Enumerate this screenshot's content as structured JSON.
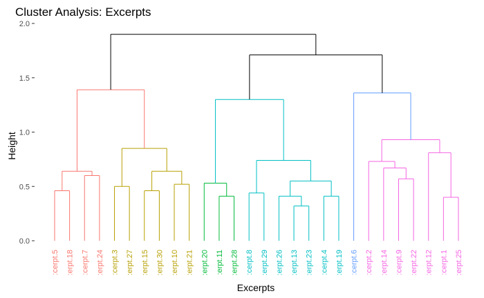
{
  "chart_data": {
    "type": "dendrogram",
    "title": "Cluster Analysis: Excerpts",
    "xlabel": "Excerpts",
    "ylabel": "Height",
    "ylim": [
      0,
      2.0
    ],
    "yticks": [
      0.0,
      0.5,
      1.0,
      1.5,
      2.0
    ],
    "ytick_labels": [
      "0.0",
      "0.5",
      "1.0",
      "1.5",
      "2.0"
    ],
    "grid": false,
    "leaves": [
      {
        "label": ":cerpt.5",
        "color": "#F8766D"
      },
      {
        "label": ":erpt.18",
        "color": "#F8766D"
      },
      {
        "label": ":cerpt.7",
        "color": "#F8766D"
      },
      {
        "label": ":erpt.24",
        "color": "#F8766D"
      },
      {
        "label": ":cerpt.3",
        "color": "#B79F00"
      },
      {
        "label": ":erpt.27",
        "color": "#B79F00"
      },
      {
        "label": ":erpt.15",
        "color": "#B79F00"
      },
      {
        "label": ":erpt.30",
        "color": "#B79F00"
      },
      {
        "label": ":erpt.10",
        "color": "#B79F00"
      },
      {
        "label": ":erpt.21",
        "color": "#B79F00"
      },
      {
        "label": ":erpt.20",
        "color": "#00BA38"
      },
      {
        "label": ":erpt.11",
        "color": "#00BA38"
      },
      {
        "label": ":erpt.28",
        "color": "#00BA38"
      },
      {
        "label": ":cerpt.8",
        "color": "#00BFC4"
      },
      {
        "label": ":erpt.29",
        "color": "#00BFC4"
      },
      {
        "label": ":erpt.26",
        "color": "#00BFC4"
      },
      {
        "label": ":erpt.13",
        "color": "#00BFC4"
      },
      {
        "label": ":erpt.23",
        "color": "#00BFC4"
      },
      {
        "label": ":cerpt.4",
        "color": "#00BFC4"
      },
      {
        "label": ":erpt.19",
        "color": "#00BFC4"
      },
      {
        "label": ":cerpt.6",
        "color": "#619CFF"
      },
      {
        "label": ":cerpt.2",
        "color": "#F564E3"
      },
      {
        "label": ":erpt.14",
        "color": "#F564E3"
      },
      {
        "label": ":cerpt.9",
        "color": "#F564E3"
      },
      {
        "label": ":erpt.22",
        "color": "#F564E3"
      },
      {
        "label": ":erpt.12",
        "color": "#F564E3"
      },
      {
        "label": ":cerpt.1",
        "color": "#F564E3"
      },
      {
        "label": ":erpt.25",
        "color": "#F564E3"
      }
    ],
    "merges": [
      {
        "a": 0,
        "b": 1,
        "height": 0.46,
        "color": "#F8766D"
      },
      {
        "a": 2,
        "b": 3,
        "height": 0.6,
        "color": "#F8766D"
      },
      {
        "a": "m0",
        "b": "m1",
        "height": 0.64,
        "color": "#F8766D"
      },
      {
        "a": 4,
        "b": 5,
        "height": 0.5,
        "color": "#B79F00"
      },
      {
        "a": 6,
        "b": 7,
        "height": 0.46,
        "color": "#B79F00"
      },
      {
        "a": 8,
        "b": 9,
        "height": 0.52,
        "color": "#B79F00"
      },
      {
        "a": "m4",
        "b": "m5",
        "height": 0.64,
        "color": "#B79F00"
      },
      {
        "a": "m3",
        "b": "m6",
        "height": 0.85,
        "color": "#B79F00"
      },
      {
        "a": "m2",
        "b": "m7",
        "height": 1.39,
        "color": "#F8766D"
      },
      {
        "a": 11,
        "b": 12,
        "height": 0.41,
        "color": "#00BA38"
      },
      {
        "a": 10,
        "b": "m9",
        "height": 0.53,
        "color": "#00BA38"
      },
      {
        "a": 16,
        "b": 17,
        "height": 0.32,
        "color": "#00BFC4"
      },
      {
        "a": 15,
        "b": "m11",
        "height": 0.41,
        "color": "#00BFC4"
      },
      {
        "a": 18,
        "b": 19,
        "height": 0.41,
        "color": "#00BFC4"
      },
      {
        "a": "m12",
        "b": "m13",
        "height": 0.55,
        "color": "#00BFC4"
      },
      {
        "a": 13,
        "b": 14,
        "height": 0.44,
        "color": "#00BFC4"
      },
      {
        "a": "m15",
        "b": "m14",
        "height": 0.74,
        "color": "#00BFC4"
      },
      {
        "a": "m10",
        "b": "m16",
        "height": 1.3,
        "color": "#00BFC4"
      },
      {
        "a": 23,
        "b": 24,
        "height": 0.57,
        "color": "#F564E3"
      },
      {
        "a": 22,
        "b": "m18",
        "height": 0.67,
        "color": "#F564E3"
      },
      {
        "a": 21,
        "b": "m19",
        "height": 0.73,
        "color": "#F564E3"
      },
      {
        "a": 26,
        "b": 27,
        "height": 0.4,
        "color": "#F564E3"
      },
      {
        "a": 25,
        "b": "m21",
        "height": 0.81,
        "color": "#F564E3"
      },
      {
        "a": "m20",
        "b": "m22",
        "height": 0.93,
        "color": "#F564E3"
      },
      {
        "a": 20,
        "b": "m23",
        "height": 1.36,
        "color": "#619CFF"
      },
      {
        "a": "m17",
        "b": "m24",
        "height": 1.71,
        "color": "#000000"
      },
      {
        "a": "m8",
        "b": "m25",
        "height": 1.9,
        "color": "#000000"
      }
    ]
  }
}
